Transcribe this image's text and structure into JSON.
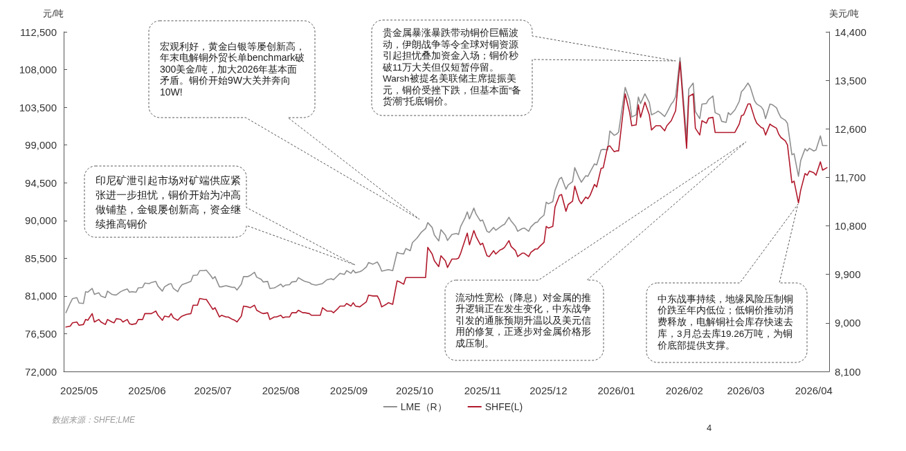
{
  "chart_data": {
    "type": "line",
    "ylabel": "元/吨",
    "y2label": "美元/吨",
    "x": [
      "2025-04-25",
      "2025-04-27",
      "2025-04-28",
      "2025-04-30",
      "2025-05-01",
      "2025-05-03",
      "2025-05-04",
      "2025-05-05",
      "2025-05-07",
      "2025-05-08",
      "2025-05-10",
      "2025-05-11",
      "2025-05-13",
      "2025-05-14",
      "2025-05-16",
      "2025-05-17",
      "2025-05-18",
      "2025-05-20",
      "2025-05-21",
      "2025-05-23",
      "2025-05-24",
      "2025-05-25",
      "2025-05-27",
      "2025-05-28",
      "2025-05-30",
      "2025-05-31",
      "2025-06-02",
      "2025-06-03",
      "2025-06-05",
      "2025-06-06",
      "2025-06-08",
      "2025-06-09",
      "2025-06-11",
      "2025-06-12",
      "2025-06-13",
      "2025-06-15",
      "2025-06-16",
      "2025-06-17",
      "2025-06-19",
      "2025-06-21",
      "2025-06-22",
      "2025-06-24",
      "2025-06-25",
      "2025-06-27",
      "2025-06-28",
      "2025-06-30",
      "2025-07-01",
      "2025-07-02",
      "2025-07-04",
      "2025-07-05",
      "2025-07-07",
      "2025-07-08",
      "2025-07-10",
      "2025-07-11",
      "2025-07-12",
      "2025-07-14",
      "2025-07-15",
      "2025-07-17",
      "2025-07-18",
      "2025-07-20",
      "2025-07-21",
      "2025-07-23",
      "2025-07-24",
      "2025-07-26",
      "2025-07-27",
      "2025-07-29",
      "2025-07-30",
      "2025-08-01",
      "2025-08-02",
      "2025-08-03",
      "2025-08-05",
      "2025-08-06",
      "2025-08-08",
      "2025-08-09",
      "2025-08-11",
      "2025-08-12",
      "2025-08-14",
      "2025-08-15",
      "2025-08-17",
      "2025-08-19",
      "2025-08-20",
      "2025-08-22",
      "2025-08-24",
      "2025-08-25",
      "2025-08-27",
      "2025-08-28",
      "2025-08-30",
      "2025-08-31",
      "2025-09-02",
      "2025-09-03",
      "2025-09-04",
      "2025-09-06",
      "2025-09-07",
      "2025-09-09",
      "2025-09-10",
      "2025-09-12",
      "2025-09-14",
      "2025-09-15",
      "2025-09-16",
      "2025-09-18",
      "2025-09-19",
      "2025-09-21",
      "2025-09-23",
      "2025-09-24",
      "2025-09-26",
      "2025-09-27",
      "2025-09-29",
      "2025-09-30",
      "2025-10-02",
      "2025-10-04",
      "2025-10-06",
      "2025-10-07",
      "2025-10-09",
      "2025-10-10",
      "2025-10-12",
      "2025-10-13",
      "2025-10-15",
      "2025-10-16",
      "2025-10-18",
      "2025-10-20",
      "2025-10-21",
      "2025-10-22",
      "2025-10-24",
      "2025-10-25",
      "2025-10-26",
      "2025-10-28",
      "2025-10-29",
      "2025-10-31",
      "2025-11-01",
      "2025-11-03",
      "2025-11-04",
      "2025-11-06",
      "2025-11-07",
      "2025-11-09",
      "2025-11-10",
      "2025-11-11",
      "2025-11-13",
      "2025-11-14",
      "2025-11-16",
      "2025-11-17",
      "2025-11-19",
      "2025-11-20",
      "2025-11-22",
      "2025-11-23",
      "2025-11-25",
      "2025-11-26",
      "2025-11-27",
      "2025-11-29",
      "2025-11-30",
      "2025-12-01",
      "2025-12-03",
      "2025-12-04",
      "2025-12-06",
      "2025-12-07",
      "2025-12-09",
      "2025-12-10",
      "2025-12-12",
      "2025-12-13",
      "2025-12-15",
      "2025-12-16",
      "2025-12-18",
      "2025-12-19",
      "2025-12-20",
      "2025-12-22",
      "2025-12-23",
      "2025-12-25",
      "2025-12-26",
      "2025-12-28",
      "2025-12-29",
      "2025-12-31",
      "2026-01-01",
      "2026-01-02",
      "2026-01-05",
      "2026-01-07",
      "2026-01-08",
      "2026-01-10",
      "2026-01-11",
      "2026-01-12",
      "2026-01-14",
      "2026-01-16",
      "2026-01-17",
      "2026-01-19",
      "2026-01-20",
      "2026-01-21",
      "2026-01-23",
      "2026-01-24",
      "2026-01-26",
      "2026-01-27",
      "2026-01-28",
      "2026-01-30",
      "2026-02-02",
      "2026-02-03",
      "2026-02-05",
      "2026-02-06",
      "2026-02-08",
      "2026-02-09",
      "2026-02-11",
      "2026-02-12",
      "2026-02-14",
      "2026-02-15",
      "2026-02-17",
      "2026-02-18",
      "2026-02-20",
      "2026-02-21",
      "2026-02-22",
      "2026-02-24",
      "2026-02-26",
      "2026-02-27",
      "2026-02-28",
      "2026-03-02",
      "2026-03-03",
      "2026-03-05",
      "2026-03-06",
      "2026-03-08",
      "2026-03-09",
      "2026-03-10",
      "2026-03-12",
      "2026-03-13",
      "2026-03-15",
      "2026-03-16",
      "2026-03-17",
      "2026-03-19",
      "2026-03-20",
      "2026-03-22",
      "2026-03-23",
      "2026-03-25",
      "2026-03-26",
      "2026-03-28",
      "2026-03-29",
      "2026-03-30",
      "2026-04-01",
      "2026-04-02",
      "2026-04-04",
      "2026-04-05",
      "2026-04-07"
    ],
    "xlim": [
      "2025-04-24",
      "2026-04-08"
    ],
    "xticks": [
      {
        "value": "2025-05-01",
        "label": "2025/05"
      },
      {
        "value": "2025-06-01",
        "label": "2025/06"
      },
      {
        "value": "2025-07-01",
        "label": "2025/07"
      },
      {
        "value": "2025-08-01",
        "label": "2025/08"
      },
      {
        "value": "2025-09-01",
        "label": "2025/09"
      },
      {
        "value": "2025-10-01",
        "label": "2025/10"
      },
      {
        "value": "2025-11-01",
        "label": "2025/11"
      },
      {
        "value": "2025-12-01",
        "label": "2025/12"
      },
      {
        "value": "2026-01-01",
        "label": "2026/01"
      },
      {
        "value": "2026-02-01",
        "label": "2026/02"
      },
      {
        "value": "2026-03-01",
        "label": "2026/03"
      },
      {
        "value": "2026-04-01",
        "label": "2026/04"
      }
    ],
    "ylim": [
      72000,
      112500
    ],
    "yticks": [
      {
        "value": 72000,
        "label": "72,000"
      },
      {
        "value": 76500,
        "label": "76,500"
      },
      {
        "value": 81000,
        "label": "81,000"
      },
      {
        "value": 85500,
        "label": "85,500"
      },
      {
        "value": 90000,
        "label": "90,000"
      },
      {
        "value": 94500,
        "label": "94,500"
      },
      {
        "value": 99000,
        "label": "99,000"
      },
      {
        "value": 103500,
        "label": "103,500"
      },
      {
        "value": 108000,
        "label": "108,000"
      },
      {
        "value": 112500,
        "label": "112,500"
      }
    ],
    "y2lim": [
      8100,
      14400
    ],
    "y2ticks": [
      {
        "value": 8100,
        "label": "8,100"
      },
      {
        "value": 9000,
        "label": "9,000"
      },
      {
        "value": 9900,
        "label": "9,900"
      },
      {
        "value": 10800,
        "label": "10,800"
      },
      {
        "value": 11700,
        "label": "11,700"
      },
      {
        "value": 12600,
        "label": "12,600"
      },
      {
        "value": 13500,
        "label": "13,500"
      },
      {
        "value": 14400,
        "label": "14,400"
      }
    ],
    "series": [
      {
        "name": "LME（R）",
        "color": "#8f8f8f",
        "axis": "y2",
        "values": [
          9190,
          9370,
          9450,
          9470,
          9370,
          9360,
          9580,
          9570,
          9640,
          9530,
          9560,
          9500,
          9470,
          9590,
          9530,
          9520,
          9520,
          9580,
          9600,
          9630,
          9570,
          9580,
          9570,
          9650,
          9660,
          9740,
          9730,
          9750,
          9770,
          9680,
          9590,
          9670,
          9720,
          9730,
          9640,
          9580,
          9660,
          9710,
          9740,
          9770,
          9880,
          9890,
          9970,
          9970,
          9980,
          9880,
          9820,
          9860,
          9670,
          9670,
          9690,
          9680,
          9660,
          9660,
          9610,
          9720,
          9860,
          9860,
          9880,
          9940,
          9850,
          9810,
          9760,
          9770,
          9640,
          9650,
          9670,
          9720,
          9670,
          9700,
          9710,
          9760,
          9770,
          9840,
          9790,
          9770,
          9750,
          9720,
          9700,
          9720,
          9730,
          9800,
          9820,
          9800,
          9880,
          9920,
          9900,
          9970,
          9920,
          9980,
          9930,
          9950,
          9970,
          10040,
          10120,
          10090,
          10130,
          10060,
          9960,
          9980,
          9990,
          9970,
          10310,
          10290,
          10280,
          10380,
          10340,
          10490,
          10570,
          10680,
          10750,
          10860,
          10770,
          10630,
          10520,
          10730,
          10630,
          10530,
          10640,
          10660,
          10640,
          10790,
          10950,
          11060,
          10930,
          11130,
          11020,
          10890,
          10910,
          10700,
          10680,
          10770,
          10720,
          10780,
          10810,
          10830,
          10960,
          10890,
          10790,
          10700,
          10750,
          10760,
          10700,
          10780,
          10860,
          10870,
          10930,
          11000,
          11240,
          11210,
          11250,
          11460,
          11670,
          11700,
          11480,
          11560,
          11620,
          11880,
          11690,
          11610,
          11730,
          11720,
          11800,
          11950,
          11930,
          12210,
          12220,
          12210,
          12560,
          12480,
          12500,
          12540,
          13370,
          13130,
          12820,
          12860,
          13190,
          13070,
          13250,
          13090,
          12860,
          12900,
          12930,
          12900,
          12830,
          12900,
          13060,
          13110,
          13200,
          13920,
          12420,
          13340,
          13450,
          12920,
          12790,
          13060,
          13070,
          13140,
          13210,
          12900,
          12860,
          12740,
          12720,
          12900,
          12860,
          12950,
          13110,
          13290,
          13330,
          13450,
          13380,
          13120,
          13060,
          13010,
          12950,
          12790,
          13060,
          13050,
          12990,
          12890,
          12810,
          12760,
          12700,
          12120,
          12140,
          11720,
          12010,
          12230,
          12190,
          12240,
          12190,
          12210,
          12470,
          12290,
          12290
        ]
      },
      {
        "name": "SHFE(L)",
        "color": "#b0182b",
        "values": [
          77300,
          77400,
          77800,
          77900,
          77500,
          77600,
          78200,
          78100,
          78900,
          77900,
          78200,
          77900,
          77600,
          78200,
          77900,
          77800,
          78300,
          78200,
          77900,
          78200,
          77700,
          77600,
          77700,
          78200,
          78200,
          78900,
          78900,
          78900,
          79200,
          78700,
          78100,
          78600,
          78500,
          78900,
          78400,
          78100,
          78400,
          78600,
          78800,
          78900,
          79900,
          79900,
          80700,
          80600,
          80600,
          79800,
          79400,
          79600,
          78500,
          78700,
          78500,
          78500,
          78200,
          78100,
          77900,
          78600,
          79800,
          79700,
          79600,
          79900,
          79300,
          79000,
          78900,
          79000,
          78200,
          78500,
          78500,
          78700,
          78400,
          78500,
          78500,
          79000,
          79000,
          79300,
          79000,
          79000,
          78900,
          78700,
          78700,
          78700,
          79600,
          79200,
          79200,
          79000,
          79500,
          79800,
          79800,
          80100,
          79800,
          80200,
          79800,
          79700,
          79900,
          80300,
          81100,
          81000,
          81000,
          80500,
          79700,
          80000,
          80200,
          80000,
          82800,
          82700,
          82400,
          83200,
          83200,
          83200,
          83200,
          83200,
          83200,
          86800,
          86000,
          85200,
          84500,
          85800,
          85200,
          84400,
          85400,
          85400,
          85500,
          86100,
          87700,
          88500,
          87100,
          88800,
          88100,
          87100,
          87300,
          85800,
          85700,
          86400,
          86000,
          86500,
          86600,
          86800,
          87600,
          86900,
          86400,
          85700,
          86100,
          86100,
          85700,
          86200,
          86600,
          86600,
          86900,
          87400,
          89300,
          89100,
          89300,
          91600,
          93000,
          93100,
          91100,
          91900,
          92300,
          94100,
          92400,
          92000,
          92800,
          92600,
          93000,
          94300,
          94000,
          96200,
          96300,
          98800,
          98900,
          98200,
          98300,
          98300,
          105100,
          102900,
          101300,
          101400,
          103800,
          102300,
          104100,
          102600,
          100800,
          101300,
          101300,
          101300,
          100700,
          101300,
          101900,
          102500,
          103100,
          108900,
          98600,
          104800,
          105100,
          101000,
          100200,
          101900,
          101600,
          102200,
          102300,
          100500,
          100500,
          100500,
          100500,
          100500,
          100500,
          100500,
          101500,
          102500,
          102600,
          103900,
          103900,
          102200,
          101600,
          101100,
          101000,
          100200,
          101500,
          101300,
          101000,
          100300,
          99900,
          99500,
          99000,
          94500,
          94700,
          92100,
          93600,
          95600,
          95400,
          95900,
          95700,
          95400,
          97000,
          96000,
          96300
        ]
      }
    ],
    "legend": "bottom",
    "annotations": [
      "印尼矿泄引起市场对矿端供应紧张进一步担忧，铜价开始为冲高做铺垫，金银屡创新高，资金继续推高铜价",
      "宏观利好，黄金白银等屡创新高，年末电解铜外贸长单benchmark破300美金/吨，加大2026年基本面矛盾。铜价开始9W大关并奔向10W!",
      "贵金属暴涨暴跌带动铜价巨幅波动，伊朗战争等令全球对铜资源引起担忧叠加资金入场；铜价秒破11万大关但仅短暂停留。\nWarsh被提名美联储主席提振美元，铜价受挫下跌，但基本面“备货潮”托底铜价。",
      "流动性宽松（降息）对金属的推升逻辑正在发生变化，中东战争引发的通胀预期升温以及美元信用的修复，正逐步对金属价格形成压制。",
      "中东战事持续，地缘风险压制铜价跌至年内低位；低铜价推动消费释放，电解铜社会库存快速去库，3月总去库19.26万吨，为铜价底部提供支撑。",
      "数据来源：SHFE;LME",
      "4"
    ]
  }
}
